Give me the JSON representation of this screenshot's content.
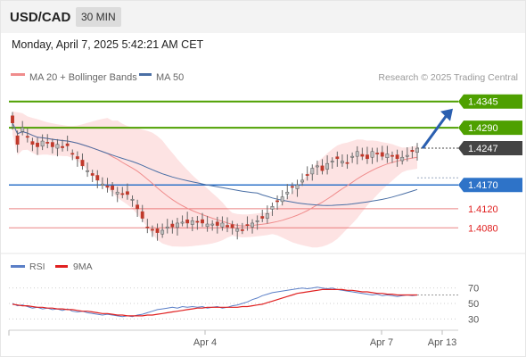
{
  "header": {
    "symbol": "USD/CAD",
    "timeframe": "30 MIN",
    "datetime": "Monday, April 7, 2025 5:42:21 AM CET"
  },
  "legend": {
    "ma20_bb": "MA 20 + Bollinger Bands",
    "ma50": "MA 50",
    "credit": "Research © 2025 Trading Central"
  },
  "rsi_legend": {
    "rsi": "RSI",
    "ma9": "9MA"
  },
  "colors": {
    "up_candle": "#bfbfbf",
    "down_candle": "#c0392b",
    "bollinger_fill": "#fde0e0",
    "ma20": "#f08c8c",
    "ma50": "#4a6fa5",
    "resistance": "#4ea000",
    "pivot": "#2e73c8",
    "support": "#e35a5a",
    "current": "#444444",
    "arrow": "#2a5fb0",
    "rsi": "#5b7fc7",
    "rsi_ma": "#e02020"
  },
  "chart_data": [
    {
      "type": "candlestick",
      "x_axis": "time (30 min bars)",
      "ylim": [
        1.403,
        1.438
      ],
      "close": [
        1.43,
        1.4255,
        1.429,
        1.427,
        1.4255,
        1.425,
        1.4262,
        1.4258,
        1.425,
        1.4255,
        1.4248,
        1.4252,
        1.4236,
        1.4225,
        1.421,
        1.42,
        1.419,
        1.418,
        1.4172,
        1.4165,
        1.416,
        1.4155,
        1.415,
        1.415,
        1.414,
        1.412,
        1.41,
        1.408,
        1.4075,
        1.407,
        1.4075,
        1.4082,
        1.4082,
        1.409,
        1.4092,
        1.409,
        1.4095,
        1.4093,
        1.409,
        1.4088,
        1.4088,
        1.4085,
        1.409,
        1.4082,
        1.408,
        1.4078,
        1.4075,
        1.4085,
        1.409,
        1.4095,
        1.41,
        1.411,
        1.4125,
        1.4135,
        1.4145,
        1.4155,
        1.4165,
        1.417,
        1.418,
        1.419,
        1.4205,
        1.421,
        1.42,
        1.4215,
        1.422,
        1.4225,
        1.422,
        1.4215,
        1.423,
        1.424,
        1.423,
        1.4225,
        1.424,
        1.4235,
        1.423,
        1.4235,
        1.423,
        1.4225,
        1.4228,
        1.4232,
        1.424,
        1.4247
      ],
      "levels": [
        {
          "label": "1.4345",
          "value": 1.4345,
          "kind": "resistance"
        },
        {
          "label": "1.4290",
          "value": 1.429,
          "kind": "resistance"
        },
        {
          "label": "1.4247",
          "value": 1.4247,
          "kind": "current"
        },
        {
          "label": "1.4170",
          "value": 1.417,
          "kind": "pivot"
        },
        {
          "label": "1.4120",
          "value": 1.412,
          "kind": "support"
        },
        {
          "label": "1.4080",
          "value": 1.408,
          "kind": "support"
        }
      ],
      "arrow": {
        "from": 1.4247,
        "to": 1.433,
        "direction": "up"
      }
    },
    {
      "type": "line",
      "title": "RSI",
      "ylim": [
        20,
        80
      ],
      "y_ticks": [
        30,
        50,
        70
      ],
      "series": [
        {
          "name": "RSI",
          "values": [
            50,
            47,
            48,
            46,
            44,
            45,
            43,
            44,
            42,
            43,
            41,
            43,
            40,
            39,
            40,
            38,
            37,
            36,
            35,
            36,
            35,
            34,
            33,
            34,
            33,
            35,
            36,
            38,
            40,
            42,
            43,
            44,
            45,
            44,
            46,
            45,
            46,
            45,
            46,
            44,
            45,
            46,
            44,
            45,
            47,
            48,
            50,
            52,
            55,
            57,
            60,
            62,
            64,
            65,
            66,
            67,
            68,
            69,
            70,
            69,
            70,
            71,
            70,
            69,
            70,
            68,
            67,
            66,
            65,
            64,
            63,
            62,
            61,
            62,
            60,
            61,
            60,
            59,
            60,
            61,
            60,
            61
          ]
        },
        {
          "name": "9MA",
          "values": [
            49,
            48,
            47,
            47,
            46,
            45,
            45,
            44,
            44,
            43,
            43,
            42,
            42,
            41,
            40,
            40,
            39,
            38,
            37,
            37,
            36,
            35,
            35,
            34,
            34,
            34,
            34,
            35,
            35,
            36,
            37,
            38,
            39,
            40,
            41,
            42,
            43,
            44,
            44,
            45,
            45,
            45,
            45,
            45,
            45,
            45,
            46,
            46,
            47,
            48,
            49,
            51,
            53,
            55,
            57,
            59,
            61,
            63,
            64,
            65,
            66,
            67,
            68,
            68,
            68,
            68,
            68,
            67,
            67,
            66,
            65,
            65,
            64,
            63,
            63,
            62,
            62,
            61,
            61,
            61,
            61,
            61
          ]
        }
      ]
    }
  ],
  "x_axis": {
    "ticks": [
      "Apr 4",
      "Apr 7",
      "Apr 13"
    ]
  }
}
